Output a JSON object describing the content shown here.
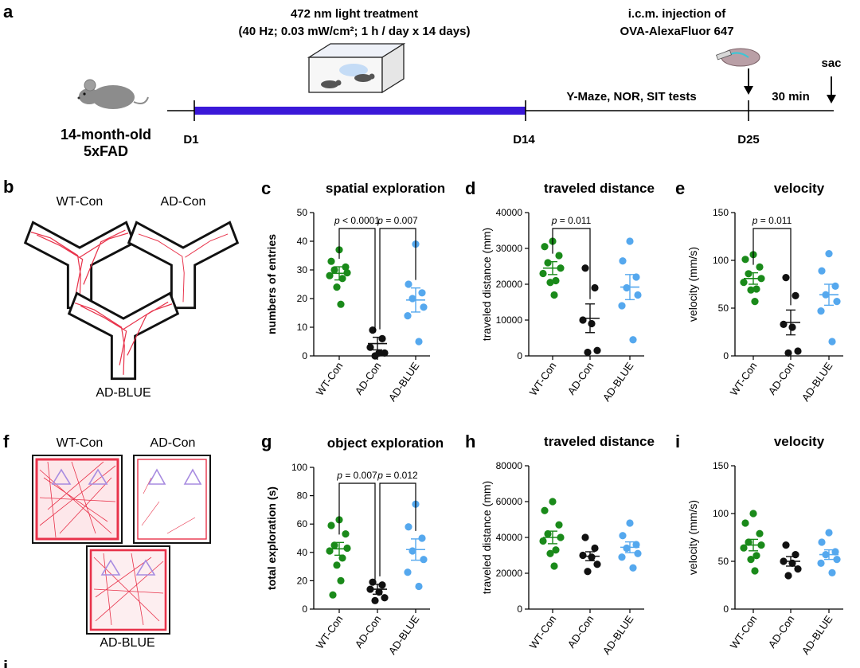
{
  "panel_letters": {
    "a": "a",
    "b": "b",
    "c": "c",
    "d": "d",
    "e": "e",
    "f": "f",
    "g": "g",
    "h": "h",
    "i": "i",
    "j": "j"
  },
  "timeline": {
    "title_line1": "472 nm light treatment",
    "title_line2": "(40 Hz; 0.03 mW/cm²; 1 h / day x 14 days)",
    "injection_line1": "i.c.m. injection of",
    "injection_line2": "OVA-AlexaFluor 647",
    "sac": "sac",
    "mouse_line1": "14-month-old",
    "mouse_line2": "5xFAD",
    "d1": "D1",
    "d14": "D14",
    "d25": "D25",
    "tests": "Y-Maze, NOR, SIT tests",
    "interval": "30 min"
  },
  "ymaze_labels": {
    "wt": "WT-Con",
    "ad": "AD-Con",
    "blue": "AD-BLUE"
  },
  "nor_labels": {
    "wt": "WT-Con",
    "ad": "AD-Con",
    "blue": "AD-BLUE"
  },
  "colors": {
    "wt": "#1a8a1a",
    "ad": "#111111",
    "blue": "#55a8ee",
    "treat_bar": "#3a18d8",
    "trace": "#e8324a",
    "triangle": "#a78be0"
  },
  "chart_data": [
    {
      "id": "c",
      "type": "scatter",
      "title": "spatial exploration",
      "ylabel": "numbers of entries",
      "ylim": [
        0,
        50
      ],
      "yticks": [
        0,
        10,
        20,
        30,
        40,
        50
      ],
      "ytick_labels": [
        "0",
        "10",
        "20",
        "30",
        "40",
        "50"
      ],
      "categories": [
        "WT-Con",
        "AD-Con",
        "AD-BLUE"
      ],
      "series": [
        {
          "name": "WT-Con",
          "mean": 28.8,
          "sem": 2.3,
          "values": [
            37,
            33,
            31,
            30,
            29,
            28,
            27,
            24,
            18
          ]
        },
        {
          "name": "AD-Con",
          "mean": 4.3,
          "sem": 2.2,
          "values": [
            9,
            6,
            3,
            1,
            1,
            0
          ]
        },
        {
          "name": "AD-BLUE",
          "mean": 19.5,
          "sem": 4.2,
          "values": [
            39,
            25,
            22,
            20,
            17,
            14,
            5
          ]
        }
      ],
      "pvalues": [
        {
          "text": "< 0.0001",
          "from": 0,
          "to": 1
        },
        {
          "text": "0.007",
          "from": 1,
          "to": 2
        }
      ]
    },
    {
      "id": "d",
      "type": "scatter",
      "title": "traveled distance",
      "ylabel": "traveled distance (mm)",
      "ylim": [
        0,
        40000
      ],
      "yticks": [
        0,
        10000,
        20000,
        30000,
        40000
      ],
      "ytick_labels": [
        "0",
        "10000",
        "20000",
        "30000",
        "40000"
      ],
      "categories": [
        "WT-Con",
        "AD-Con",
        "AD-BLUE"
      ],
      "series": [
        {
          "name": "WT-Con",
          "mean": 24500,
          "sem": 1800,
          "values": [
            32000,
            30500,
            28000,
            26000,
            24500,
            23000,
            21000,
            20500,
            17000
          ]
        },
        {
          "name": "AD-Con",
          "mean": 10500,
          "sem": 4000,
          "values": [
            24500,
            19000,
            10000,
            9000,
            1500,
            1000
          ]
        },
        {
          "name": "AD-BLUE",
          "mean": 19200,
          "sem": 3500,
          "values": [
            32000,
            26500,
            22000,
            19000,
            17000,
            14000,
            4500
          ]
        }
      ],
      "pvalues": [
        {
          "text": "0.011",
          "from": 0,
          "to": 1
        }
      ]
    },
    {
      "id": "e",
      "type": "scatter",
      "title": "velocity",
      "ylabel": "velocity (mm/s)",
      "ylim": [
        0,
        150
      ],
      "yticks": [
        0,
        50,
        100,
        150
      ],
      "ytick_labels": [
        "0",
        "50",
        "100",
        "150"
      ],
      "categories": [
        "WT-Con",
        "AD-Con",
        "AD-BLUE"
      ],
      "series": [
        {
          "name": "WT-Con",
          "mean": 81,
          "sem": 6,
          "values": [
            106,
            101,
            93,
            86,
            81,
            77,
            70,
            69,
            57
          ]
        },
        {
          "name": "AD-Con",
          "mean": 35,
          "sem": 13,
          "values": [
            82,
            63,
            33,
            30,
            5,
            3
          ]
        },
        {
          "name": "AD-BLUE",
          "mean": 64,
          "sem": 11,
          "values": [
            107,
            89,
            73,
            64,
            57,
            47,
            15
          ]
        }
      ],
      "pvalues": [
        {
          "text": "0.011",
          "from": 0,
          "to": 1
        }
      ]
    },
    {
      "id": "g",
      "type": "scatter",
      "title": "object exploration",
      "ylabel": "total exploration (s)",
      "ylim": [
        0,
        100
      ],
      "yticks": [
        0,
        20,
        40,
        60,
        80,
        100
      ],
      "ytick_labels": [
        "0",
        "20",
        "40",
        "60",
        "80",
        "100"
      ],
      "categories": [
        "WT-Con",
        "AD-Con",
        "AD-BLUE"
      ],
      "series": [
        {
          "name": "WT-Con",
          "mean": 42.5,
          "sem": 4.5,
          "values": [
            63,
            59,
            53,
            45,
            43,
            41,
            36,
            31,
            20,
            10
          ]
        },
        {
          "name": "AD-Con",
          "mean": 14,
          "sem": 3.5,
          "values": [
            19,
            17,
            14,
            12,
            8,
            6
          ]
        },
        {
          "name": "AD-BLUE",
          "mean": 42,
          "sem": 7.5,
          "values": [
            74,
            58,
            50,
            41,
            35,
            26,
            16
          ]
        }
      ],
      "pvalues": [
        {
          "text": "0.007",
          "from": 0,
          "to": 1
        },
        {
          "text": "0.012",
          "from": 1,
          "to": 2
        }
      ]
    },
    {
      "id": "h",
      "type": "scatter",
      "title": "traveled distance",
      "ylabel": "traveled distance (mm)",
      "ylim": [
        0,
        80000
      ],
      "yticks": [
        0,
        20000,
        40000,
        60000,
        80000
      ],
      "ytick_labels": [
        "0",
        "20000",
        "40000",
        "60000",
        "80000"
      ],
      "categories": [
        "WT-Con",
        "AD-Con",
        "AD-BLUE"
      ],
      "series": [
        {
          "name": "WT-Con",
          "mean": 40000,
          "sem": 3500,
          "values": [
            60000,
            55000,
            47000,
            42000,
            40000,
            38000,
            33000,
            31000,
            24000
          ]
        },
        {
          "name": "AD-Con",
          "mean": 29500,
          "sem": 2500,
          "values": [
            40000,
            34000,
            30000,
            29000,
            25000,
            21000
          ]
        },
        {
          "name": "AD-BLUE",
          "mean": 34500,
          "sem": 3000,
          "values": [
            48000,
            41000,
            36000,
            34000,
            31000,
            29000,
            23000
          ]
        }
      ],
      "pvalues": []
    },
    {
      "id": "i",
      "type": "scatter",
      "title": "velocity",
      "ylabel": "velocity (mm/s)",
      "ylim": [
        0,
        150
      ],
      "yticks": [
        0,
        50,
        100,
        150
      ],
      "ytick_labels": [
        "0",
        "50",
        "100",
        "150"
      ],
      "categories": [
        "WT-Con",
        "AD-Con",
        "AD-BLUE"
      ],
      "series": [
        {
          "name": "WT-Con",
          "mean": 67,
          "sem": 6,
          "values": [
            100,
            90,
            79,
            70,
            67,
            64,
            56,
            52,
            40
          ]
        },
        {
          "name": "AD-Con",
          "mean": 50,
          "sem": 5,
          "values": [
            67,
            57,
            50,
            48,
            42,
            35
          ]
        },
        {
          "name": "AD-BLUE",
          "mean": 57,
          "sem": 5,
          "values": [
            80,
            70,
            60,
            57,
            52,
            48,
            38
          ]
        }
      ],
      "pvalues": []
    }
  ]
}
